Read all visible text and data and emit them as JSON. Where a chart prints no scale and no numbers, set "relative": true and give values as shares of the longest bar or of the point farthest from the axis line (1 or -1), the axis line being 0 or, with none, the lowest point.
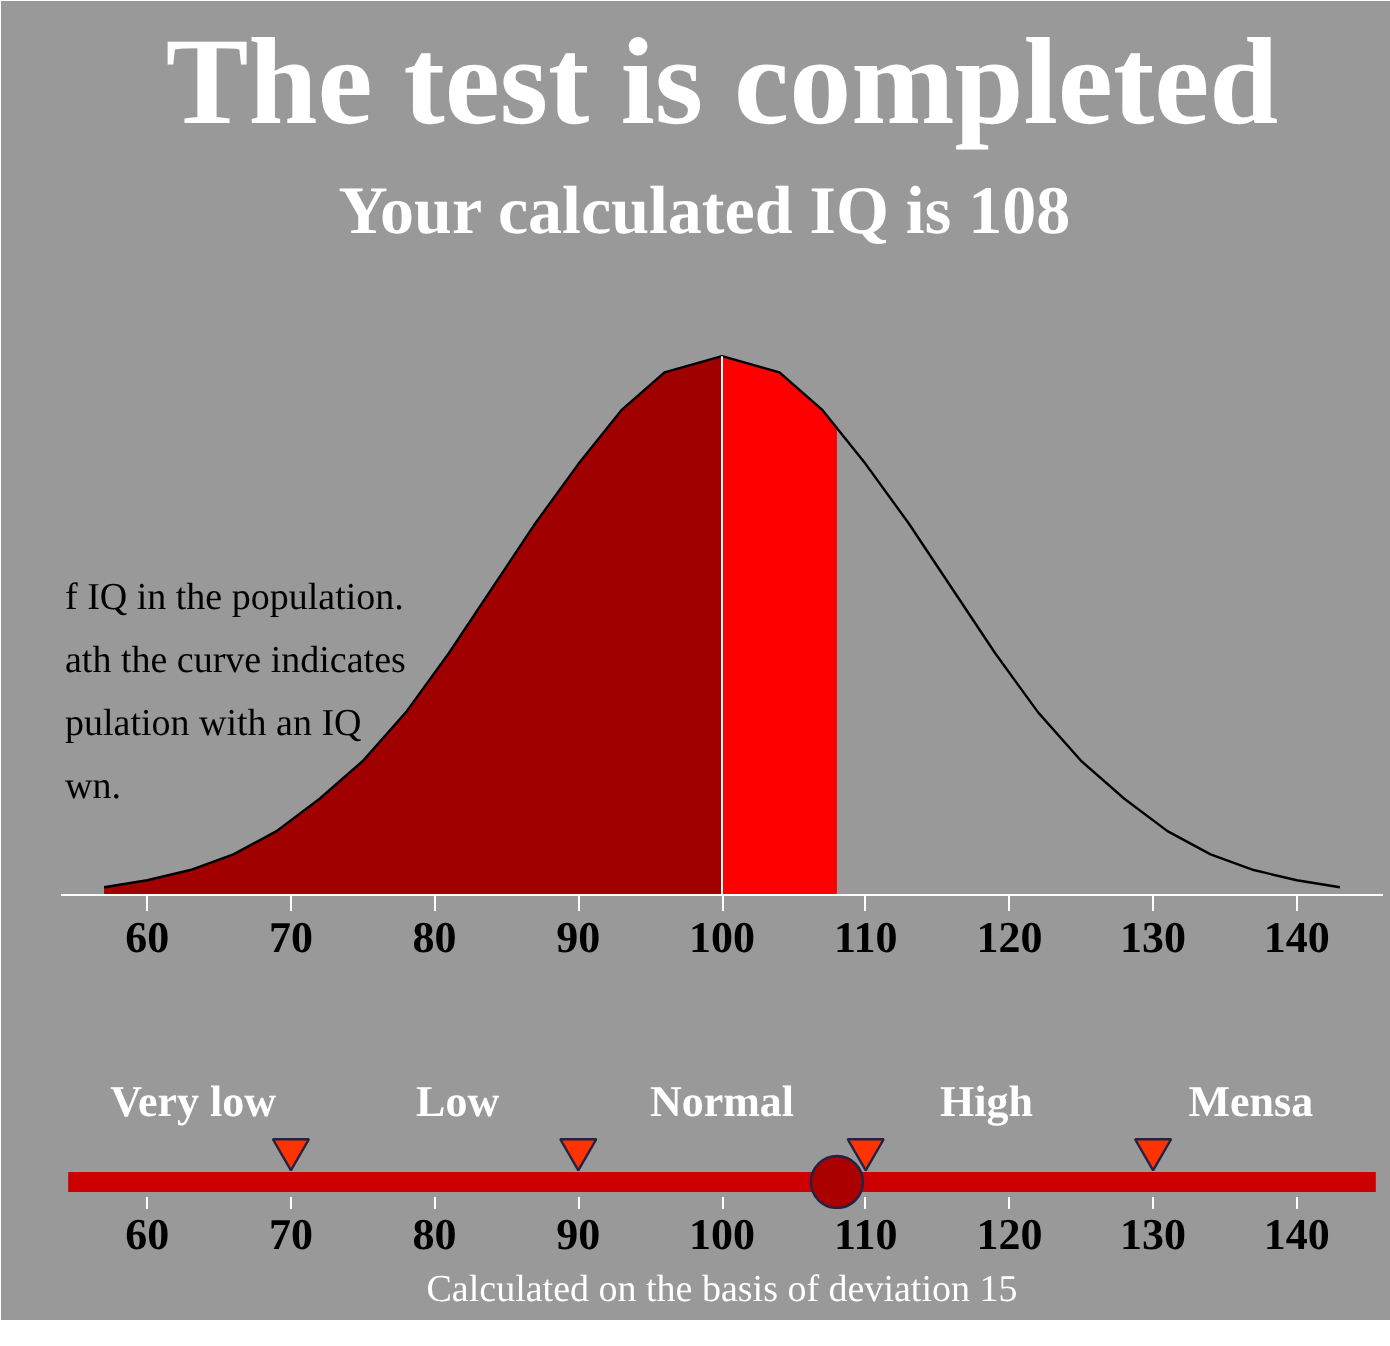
{
  "chart_data": {
    "type": "area",
    "title": "The test is completed",
    "subtitle": "Your calculated IQ is   108",
    "relative": true,
    "xlim": [
      54,
      146
    ],
    "xticks": [
      60,
      70,
      80,
      90,
      100,
      110,
      120,
      130,
      140
    ],
    "x2lim": [
      54,
      146
    ],
    "x2ticks": [
      60,
      70,
      80,
      90,
      100,
      110,
      120,
      130,
      140
    ],
    "annotations": [
      "f IQ in the population.\nath the curve indicates\npulation with an IQ\nwn.",
      "Very low",
      "Low",
      "Normal",
      "High",
      "Mensa",
      "Calculated on the basis of deviation 15"
    ],
    "ref_lines": [
      {
        "axis": "x",
        "value": 100,
        "color": "#ffffff"
      }
    ],
    "series": [
      {
        "color": "#a00000",
        "x": [
          57,
          60,
          63,
          66,
          69,
          72,
          75,
          78,
          81,
          84,
          87,
          90,
          93,
          96,
          100
        ],
        "values": [
          0.016,
          0.029,
          0.048,
          0.077,
          0.12,
          0.18,
          0.25,
          0.34,
          0.45,
          0.57,
          0.69,
          0.8,
          0.9,
          0.97,
          1
        ]
      },
      {
        "color": "#ff0000",
        "x": [
          100,
          104,
          107,
          108
        ],
        "values": [
          1,
          0.97,
          0.9,
          0.87
        ]
      },
      {
        "type": "line",
        "color": "#000000",
        "x": [
          57,
          60,
          63,
          66,
          69,
          72,
          75,
          78,
          81,
          84,
          87,
          90,
          93,
          96,
          100,
          104,
          107,
          110,
          113,
          116,
          119,
          122,
          125,
          128,
          131,
          134,
          137,
          140,
          143
        ],
        "values": [
          0.016,
          0.029,
          0.048,
          0.077,
          0.12,
          0.18,
          0.25,
          0.34,
          0.45,
          0.57,
          0.69,
          0.8,
          0.9,
          0.97,
          1,
          0.97,
          0.9,
          0.8,
          0.69,
          0.57,
          0.45,
          0.34,
          0.25,
          0.18,
          0.12,
          0.077,
          0.048,
          0.029,
          0.016
        ]
      },
      {
        "type": "line",
        "color": "#cc0000",
        "x": [
          54.5,
          145.5
        ],
        "values": [
          -0.53,
          -0.53
        ]
      },
      {
        "type": "scatter",
        "marker": "triangle",
        "color": "#ff3300",
        "x": [
          70,
          90,
          110,
          130
        ],
        "values": [
          -0.47,
          -0.47,
          -0.47,
          -0.47
        ]
      },
      {
        "type": "scatter",
        "marker": "circle",
        "color": "#aa0000",
        "x": [
          108
        ],
        "values": [
          -0.53
        ]
      }
    ]
  }
}
